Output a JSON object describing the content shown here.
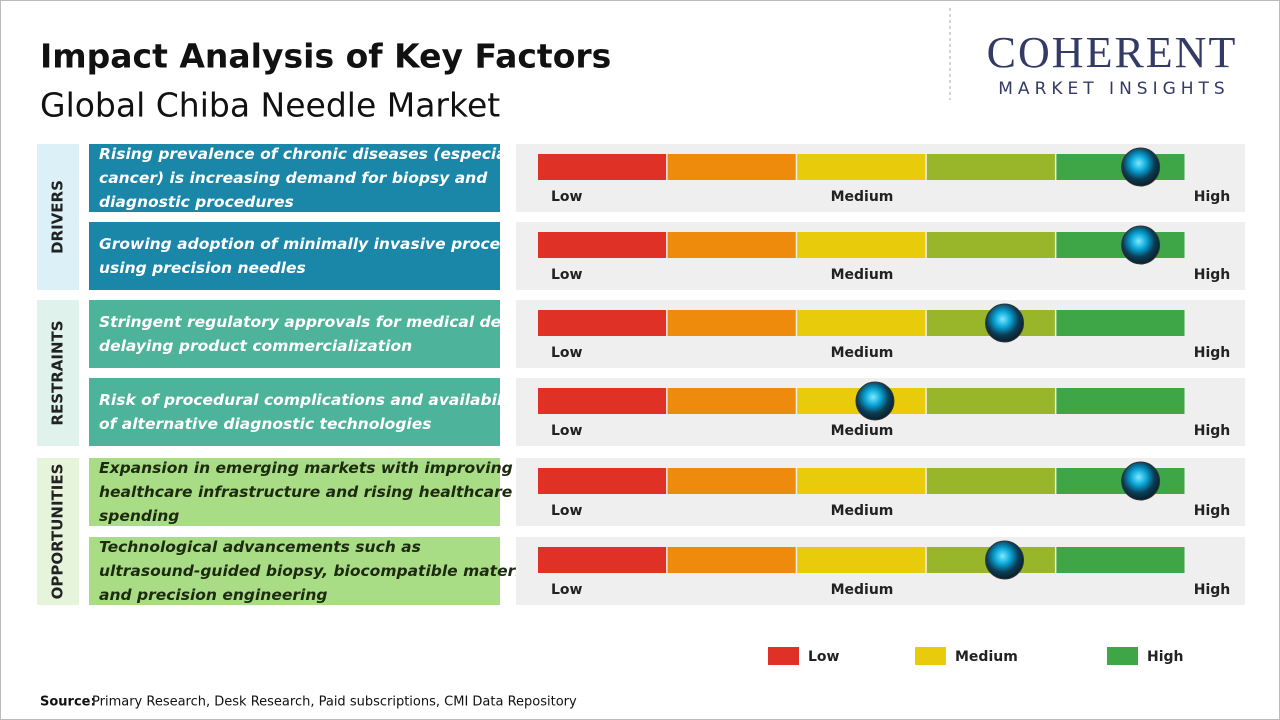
{
  "header": {
    "title": "Impact Analysis of Key Factors",
    "subtitle": "Global Chiba Needle Market"
  },
  "logo": {
    "name": "COHERENT",
    "tagline": "MARKET INSIGHTS"
  },
  "impact_range": [
    0,
    100
  ],
  "scale_labels": [
    "Low",
    "Medium",
    "High"
  ],
  "groups": [
    {
      "label": "DRIVERS",
      "color": "#1a86a8",
      "panel": "#dcf0f7",
      "text_color": "#ffffff",
      "factors": [
        {
          "text": "Rising prevalence of chronic diseases (especially cancer) is increasing demand for biopsy and diagnostic procedures",
          "impact": 93
        },
        {
          "text": "Growing adoption of minimally invasive procedures using precision needles",
          "impact": 93
        }
      ]
    },
    {
      "label": "RESTRAINTS",
      "color": "#4db39a",
      "panel": "#e0f2ec",
      "text_color": "#ffffff",
      "factors": [
        {
          "text": "Stringent regulatory approvals for medical devices delaying product commercialization",
          "impact": 72
        },
        {
          "text": "Risk of procedural complications and availability of alternative diagnostic technologies",
          "impact": 52
        }
      ]
    },
    {
      "label": "OPPORTUNITIES",
      "color": "#a8dd86",
      "panel": "#e6f4dc",
      "text_color": "#1d2a10",
      "factors": [
        {
          "text": "Expansion in emerging markets with improving healthcare infrastructure and rising healthcare spending",
          "impact": 93
        },
        {
          "text": "Technological advancements such as ultrasound-guided biopsy, biocompatible materials, and precision engineering",
          "impact": 72
        }
      ]
    }
  ],
  "legend": [
    {
      "label": "Low",
      "color": "#e03127"
    },
    {
      "label": "Medium",
      "color": "#e8cc0c"
    },
    {
      "label": "High",
      "color": "#3fa648"
    }
  ],
  "source": {
    "label": "Source:",
    "text": "Primary Research, Desk Research, Paid subscriptions, CMI Data Repository"
  }
}
